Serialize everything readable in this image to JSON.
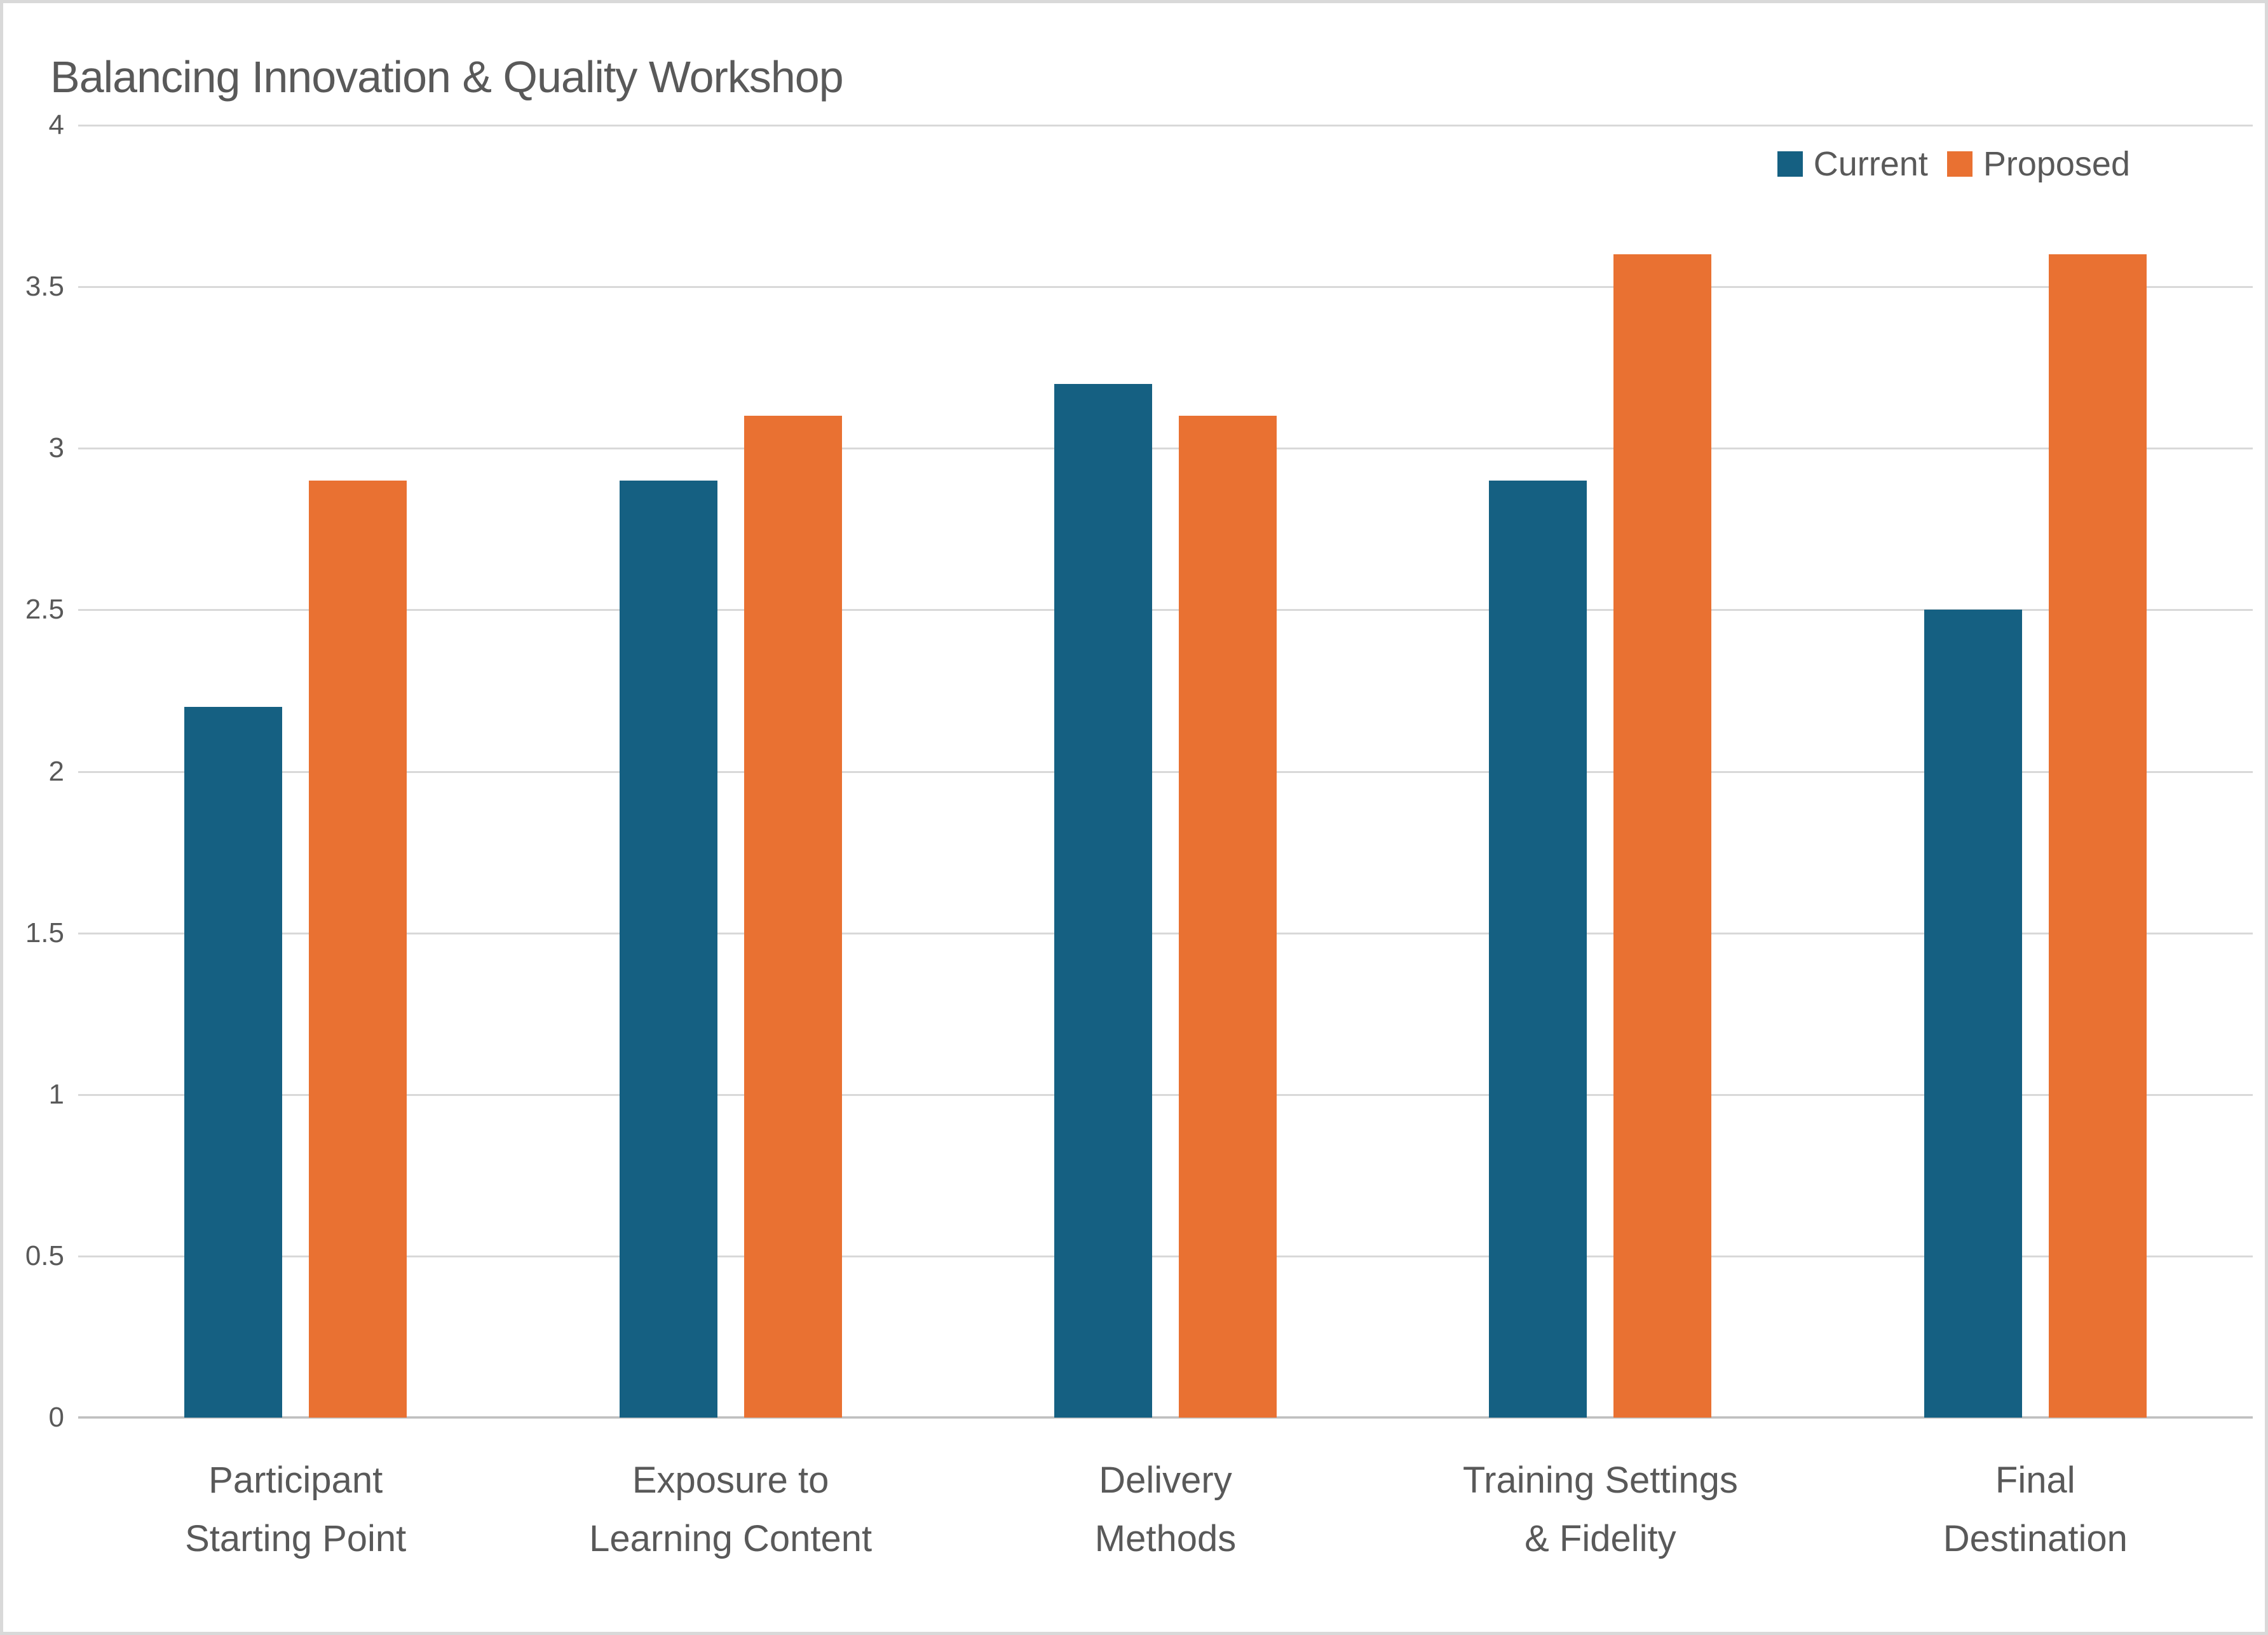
{
  "chart_data": {
    "type": "bar",
    "title": "Balancing Innovation & Quality Workshop",
    "xlabel": "",
    "ylabel": "",
    "categories": [
      [
        "Participant",
        "Starting Point"
      ],
      [
        "Exposure to",
        "Learning Content"
      ],
      [
        "Delivery",
        "Methods"
      ],
      [
        "Training Settings",
        "& Fidelity"
      ],
      [
        "Final",
        "Destination"
      ]
    ],
    "series": [
      {
        "name": "Current",
        "color": "#156082",
        "values": [
          2.2,
          2.9,
          3.2,
          2.9,
          2.5
        ]
      },
      {
        "name": "Proposed",
        "color": "#E97132",
        "values": [
          2.9,
          3.1,
          3.1,
          3.6,
          3.6
        ]
      }
    ],
    "ylim": [
      0,
      4
    ],
    "yticks": [
      0,
      0.5,
      1,
      1.5,
      2,
      2.5,
      3,
      3.5,
      4
    ],
    "ytick_labels": [
      "0",
      "0.5",
      "1",
      "1.5",
      "2",
      "2.5",
      "3",
      "3.5",
      "4"
    ],
    "grid": "horizontal",
    "legend_position": "top-right"
  },
  "colors": {
    "text": "#595959",
    "gridline": "#D9D9D9",
    "axis_line": "#BFBFBF",
    "frame_border": "#D9D9D9",
    "background": "#FFFFFF"
  },
  "layout_hints": {
    "bar_width_pct": 4.5,
    "bar_gap_pct": 1.23,
    "group_slot_pct": 20
  }
}
